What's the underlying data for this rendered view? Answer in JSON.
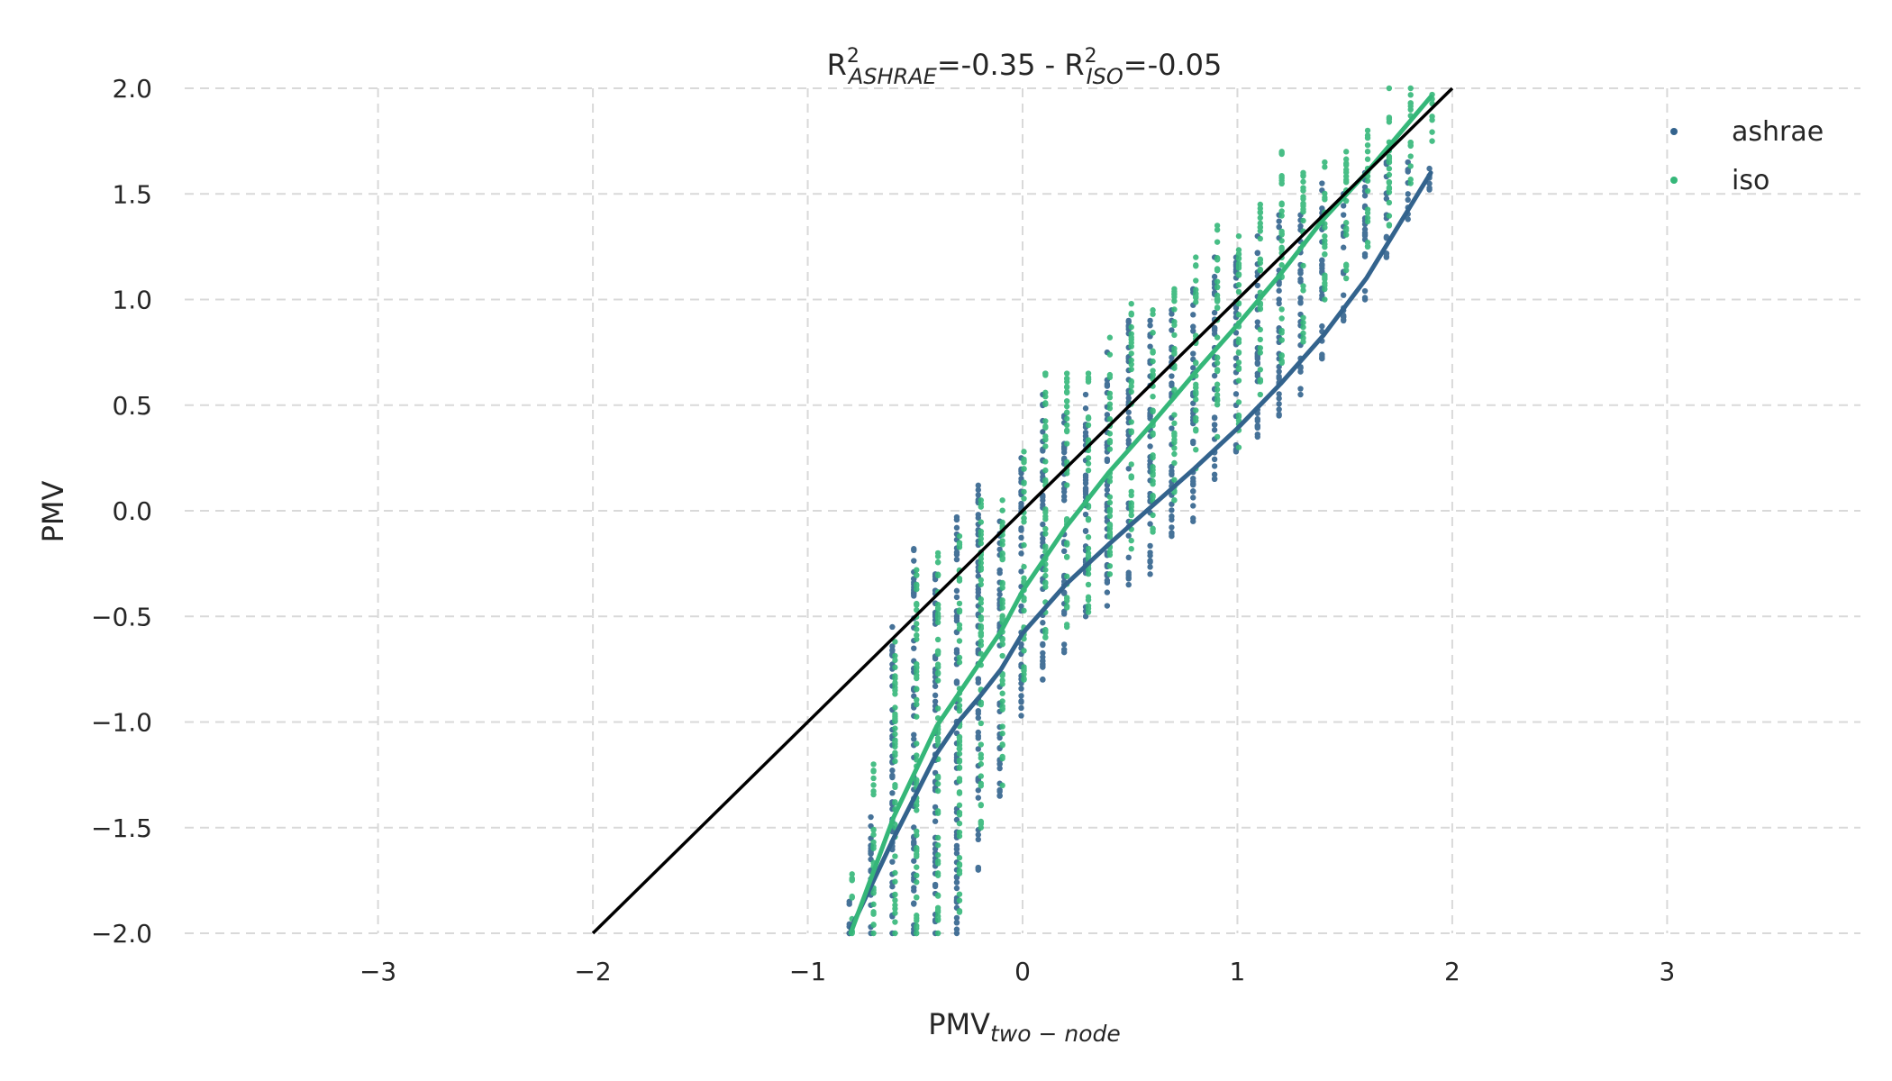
{
  "chart_data": {
    "type": "scatter",
    "title": {
      "prefix": "R",
      "sup1": "2",
      "sub1": "ASHRAE",
      "value1": "=-0.35 - R",
      "sup2": "2",
      "sub2": "ISO",
      "value2": "=-0.05"
    },
    "xlabel": {
      "main": "PMV",
      "sub": "two − node"
    },
    "ylabel": "PMV",
    "xlim": [
      -3.9,
      3.9
    ],
    "ylim": [
      -2.0,
      2.0
    ],
    "x_ticks": [
      {
        "value": -3,
        "label": "−3"
      },
      {
        "value": -2,
        "label": "−2"
      },
      {
        "value": -1,
        "label": "−1"
      },
      {
        "value": 0,
        "label": "0"
      },
      {
        "value": 1,
        "label": "1"
      },
      {
        "value": 2,
        "label": "2"
      },
      {
        "value": 3,
        "label": "3"
      }
    ],
    "y_ticks": [
      {
        "value": -2.0,
        "label": "−2.0"
      },
      {
        "value": -1.5,
        "label": "−1.5"
      },
      {
        "value": -1.0,
        "label": "−1.0"
      },
      {
        "value": -0.5,
        "label": "−0.5"
      },
      {
        "value": 0.0,
        "label": "0.0"
      },
      {
        "value": 0.5,
        "label": "0.5"
      },
      {
        "value": 1.0,
        "label": "1.0"
      },
      {
        "value": 1.5,
        "label": "1.5"
      },
      {
        "value": 2.0,
        "label": "2.0"
      }
    ],
    "grid": true,
    "legend_position": "top-right",
    "reference_line": {
      "x": [
        -2.0,
        2.0
      ],
      "y": [
        -2.0,
        2.0
      ],
      "color": "#000000"
    },
    "series": [
      {
        "name": "ashrae",
        "color": "#33638d",
        "scatter_columns": [
          {
            "x": -0.8,
            "ymin": -2.0,
            "ymax": -1.85
          },
          {
            "x": -0.7,
            "ymin": -2.0,
            "ymax": -1.45
          },
          {
            "x": -0.6,
            "ymin": -2.0,
            "ymax": -0.55
          },
          {
            "x": -0.5,
            "ymin": -2.0,
            "ymax": -0.18
          },
          {
            "x": -0.4,
            "ymin": -2.0,
            "ymax": -0.3
          },
          {
            "x": -0.3,
            "ymin": -2.0,
            "ymax": -0.03
          },
          {
            "x": -0.2,
            "ymin": -1.7,
            "ymax": 0.12
          },
          {
            "x": -0.1,
            "ymin": -1.35,
            "ymax": -0.05
          },
          {
            "x": 0.0,
            "ymin": -0.97,
            "ymax": 0.25
          },
          {
            "x": 0.1,
            "ymin": -0.8,
            "ymax": 0.55
          },
          {
            "x": 0.2,
            "ymin": -0.67,
            "ymax": 0.45
          },
          {
            "x": 0.3,
            "ymin": -0.5,
            "ymax": 0.55
          },
          {
            "x": 0.4,
            "ymin": -0.45,
            "ymax": 0.75
          },
          {
            "x": 0.5,
            "ymin": -0.35,
            "ymax": 0.9
          },
          {
            "x": 0.6,
            "ymin": -0.3,
            "ymax": 0.9
          },
          {
            "x": 0.7,
            "ymin": -0.12,
            "ymax": 0.95
          },
          {
            "x": 0.8,
            "ymin": -0.05,
            "ymax": 1.05
          },
          {
            "x": 0.9,
            "ymin": 0.15,
            "ymax": 1.2
          },
          {
            "x": 1.0,
            "ymin": 0.28,
            "ymax": 1.2
          },
          {
            "x": 1.1,
            "ymin": 0.35,
            "ymax": 1.3
          },
          {
            "x": 1.2,
            "ymin": 0.45,
            "ymax": 1.4
          },
          {
            "x": 1.3,
            "ymin": 0.55,
            "ymax": 1.4
          },
          {
            "x": 1.4,
            "ymin": 0.72,
            "ymax": 1.55
          },
          {
            "x": 1.5,
            "ymin": 0.9,
            "ymax": 1.5
          },
          {
            "x": 1.6,
            "ymin": 1.0,
            "ymax": 1.6
          },
          {
            "x": 1.7,
            "ymin": 1.2,
            "ymax": 1.65
          },
          {
            "x": 1.8,
            "ymin": 1.38,
            "ymax": 1.65
          },
          {
            "x": 1.9,
            "ymin": 1.52,
            "ymax": 1.62
          }
        ],
        "trend": {
          "x": [
            -0.8,
            -0.6,
            -0.4,
            -0.3,
            -0.2,
            -0.1,
            0.0,
            0.2,
            0.4,
            0.6,
            0.8,
            1.0,
            1.2,
            1.4,
            1.6,
            1.9
          ],
          "y": [
            -1.98,
            -1.55,
            -1.15,
            -1.0,
            -0.88,
            -0.75,
            -0.58,
            -0.35,
            -0.16,
            0.02,
            0.2,
            0.39,
            0.6,
            0.83,
            1.1,
            1.6
          ]
        }
      },
      {
        "name": "iso",
        "color": "#35b779",
        "scatter_columns": [
          {
            "x": -0.8,
            "ymin": -2.0,
            "ymax": -1.72
          },
          {
            "x": -0.7,
            "ymin": -2.0,
            "ymax": -1.2
          },
          {
            "x": -0.6,
            "ymin": -2.0,
            "ymax": -0.62
          },
          {
            "x": -0.5,
            "ymin": -2.0,
            "ymax": -0.28
          },
          {
            "x": -0.4,
            "ymin": -2.0,
            "ymax": -0.2
          },
          {
            "x": -0.3,
            "ymin": -1.9,
            "ymax": -0.12
          },
          {
            "x": -0.2,
            "ymin": -1.5,
            "ymax": 0.05
          },
          {
            "x": -0.1,
            "ymin": -1.3,
            "ymax": 0.05
          },
          {
            "x": 0.0,
            "ymin": -0.8,
            "ymax": 0.28
          },
          {
            "x": 0.1,
            "ymin": -0.6,
            "ymax": 0.65
          },
          {
            "x": 0.2,
            "ymin": -0.55,
            "ymax": 0.65
          },
          {
            "x": 0.3,
            "ymin": -0.48,
            "ymax": 0.65
          },
          {
            "x": 0.4,
            "ymin": -0.3,
            "ymax": 0.82
          },
          {
            "x": 0.5,
            "ymin": -0.18,
            "ymax": 0.98
          },
          {
            "x": 0.6,
            "ymin": -0.1,
            "ymax": 0.95
          },
          {
            "x": 0.7,
            "ymin": 0.05,
            "ymax": 1.05
          },
          {
            "x": 0.8,
            "ymin": 0.2,
            "ymax": 1.2
          },
          {
            "x": 0.9,
            "ymin": 0.35,
            "ymax": 1.35
          },
          {
            "x": 1.0,
            "ymin": 0.3,
            "ymax": 1.3
          },
          {
            "x": 1.1,
            "ymin": 0.55,
            "ymax": 1.45
          },
          {
            "x": 1.2,
            "ymin": 0.7,
            "ymax": 1.7
          },
          {
            "x": 1.3,
            "ymin": 0.8,
            "ymax": 1.6
          },
          {
            "x": 1.4,
            "ymin": 1.0,
            "ymax": 1.65
          },
          {
            "x": 1.5,
            "ymin": 1.1,
            "ymax": 1.7
          },
          {
            "x": 1.6,
            "ymin": 1.25,
            "ymax": 1.8
          },
          {
            "x": 1.7,
            "ymin": 1.35,
            "ymax": 2.0
          },
          {
            "x": 1.8,
            "ymin": 1.55,
            "ymax": 2.0
          },
          {
            "x": 1.9,
            "ymin": 1.75,
            "ymax": 1.97
          }
        ],
        "trend": {
          "x": [
            -0.8,
            -0.6,
            -0.4,
            -0.2,
            -0.1,
            0.0,
            0.2,
            0.4,
            0.6,
            0.8,
            1.0,
            1.2,
            1.4,
            1.6,
            1.9
          ],
          "y": [
            -2.0,
            -1.45,
            -1.02,
            -0.72,
            -0.57,
            -0.38,
            -0.08,
            0.18,
            0.41,
            0.65,
            0.88,
            1.12,
            1.38,
            1.6,
            1.96
          ]
        }
      }
    ]
  }
}
